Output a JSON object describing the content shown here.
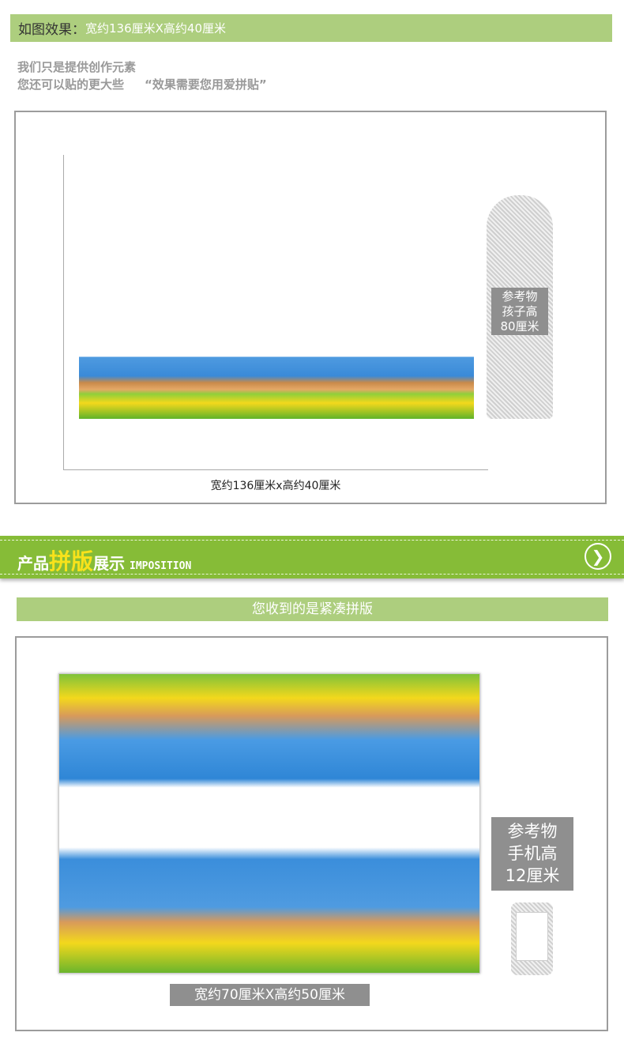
{
  "effect_header": {
    "label": "如图效果：",
    "dimensions": "宽约136厘米X高约40厘米"
  },
  "notes": {
    "line1": "我们只是提供创作元素",
    "line2": "您还可以贴的更大些",
    "line2_quote": "“效果需要您用爱拼贴”"
  },
  "preview": {
    "reference_label": [
      "参考物",
      "孩子高",
      "80厘米"
    ],
    "caption": "宽约136厘米x高约40厘米"
  },
  "banner": {
    "title_a": "产品",
    "title_b": "拼版",
    "title_c": "展示",
    "title_en": "IMPOSITION",
    "accent_color": "#f7e21b",
    "bg_color": "#86bc37"
  },
  "layout_section": {
    "subtitle": "您收到的是紧凑拼版",
    "reference_label": [
      "参考物",
      "手机高",
      "12厘米"
    ],
    "caption": "宽约70厘米X高约50厘米"
  }
}
